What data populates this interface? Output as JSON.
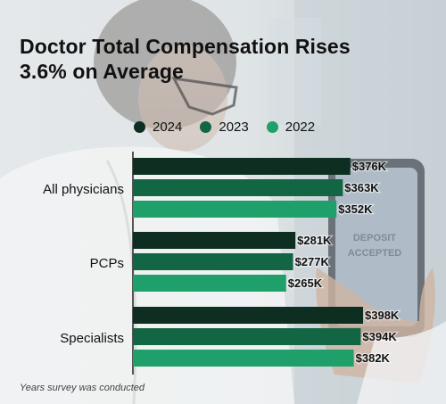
{
  "title_line1": "Doctor Total Compensation Rises",
  "title_line2": "3.6% on Average",
  "footnote": "Years survey was conducted",
  "colors": {
    "2024": "#0f2e22",
    "2023": "#136644",
    "2022": "#1fa06a"
  },
  "phone_text": {
    "line1": "DEPOSIT",
    "line2": "ACCEPTED"
  },
  "chart_data": {
    "type": "bar",
    "orientation": "horizontal",
    "title": "Doctor Total Compensation Rises 3.6% on Average",
    "categories": [
      "All physicians",
      "PCPs",
      "Specialists"
    ],
    "series": [
      {
        "name": "2024",
        "values": [
          376,
          281,
          398
        ],
        "labels": [
          "$376K",
          "$281K",
          "$398K"
        ]
      },
      {
        "name": "2023",
        "values": [
          363,
          277,
          394
        ],
        "labels": [
          "$363K",
          "$277K",
          "$394K"
        ]
      },
      {
        "name": "2022",
        "values": [
          352,
          265,
          382
        ],
        "labels": [
          "$352K",
          "$265K",
          "$382K"
        ]
      }
    ],
    "unit": "$K",
    "xlim": [
      0,
      398
    ],
    "legend": "top",
    "grid": false,
    "note": "Years survey was conducted"
  }
}
